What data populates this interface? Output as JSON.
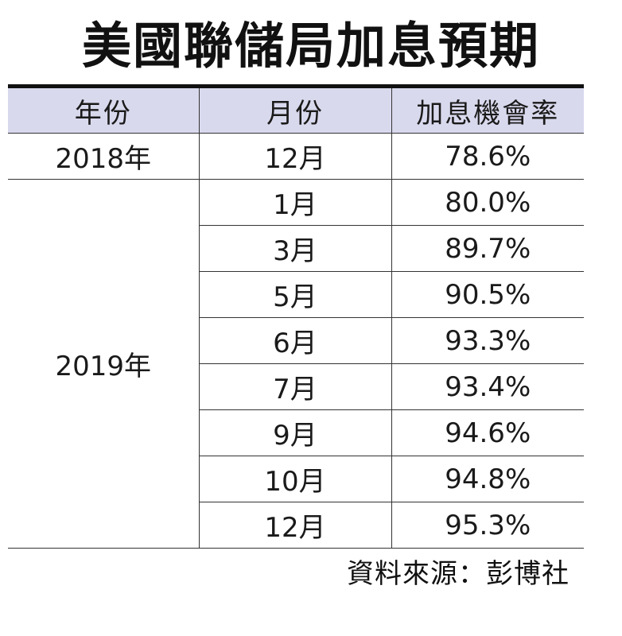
{
  "title": "美國聯儲局加息預期",
  "chart_data": {
    "type": "table",
    "headers": [
      "年份",
      "月份",
      "加息機會率"
    ],
    "groups": [
      {
        "year": "2018年",
        "rows": [
          {
            "month": "12月",
            "rate": "78.6%"
          }
        ]
      },
      {
        "year": "2019年",
        "rows": [
          {
            "month": "1月",
            "rate": "80.0%"
          },
          {
            "month": "3月",
            "rate": "89.7%"
          },
          {
            "month": "5月",
            "rate": "90.5%"
          },
          {
            "month": "6月",
            "rate": "93.3%"
          },
          {
            "month": "7月",
            "rate": "93.4%"
          },
          {
            "month": "9月",
            "rate": "94.6%"
          },
          {
            "month": "10月",
            "rate": "94.8%"
          },
          {
            "month": "12月",
            "rate": "95.3%"
          }
        ]
      }
    ],
    "header_color": "#d9d9ee"
  },
  "source": "資料來源：彭博社"
}
